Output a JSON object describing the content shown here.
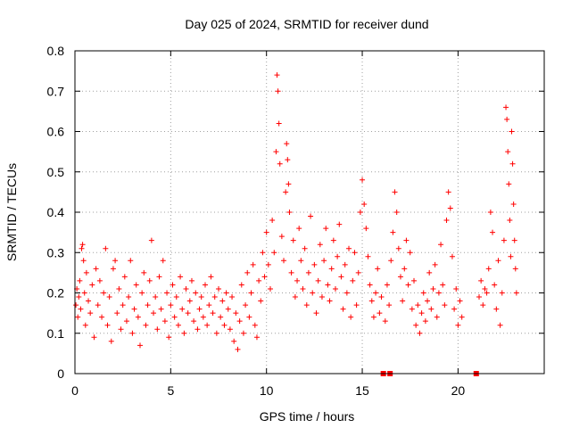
{
  "chart_data": {
    "type": "scatter",
    "title": "Day 025 of 2024, SRMTID for receiver dund",
    "xlabel": "GPS time / hours",
    "ylabel": "SRMTID / TECUs",
    "xlim": [
      0,
      24.5
    ],
    "ylim": [
      0,
      0.8
    ],
    "xticks": [
      0,
      5,
      10,
      15,
      20
    ],
    "yticks": [
      0,
      0.1,
      0.2,
      0.3,
      0.4,
      0.5,
      0.6,
      0.7,
      0.8
    ],
    "grid": true,
    "marker": "+",
    "color": "#ff0000",
    "zero_markers_x": [
      16.1,
      16.45,
      20.95
    ],
    "series": [
      {
        "name": "SRMTID",
        "points": [
          [
            0.05,
            0.17
          ],
          [
            0.1,
            0.21
          ],
          [
            0.15,
            0.14
          ],
          [
            0.2,
            0.19
          ],
          [
            0.25,
            0.23
          ],
          [
            0.3,
            0.16
          ],
          [
            0.35,
            0.31
          ],
          [
            0.4,
            0.32
          ],
          [
            0.45,
            0.28
          ],
          [
            0.5,
            0.2
          ],
          [
            0.55,
            0.12
          ],
          [
            0.6,
            0.25
          ],
          [
            0.7,
            0.18
          ],
          [
            0.8,
            0.15
          ],
          [
            0.9,
            0.22
          ],
          [
            1.0,
            0.09
          ],
          [
            1.1,
            0.26
          ],
          [
            1.2,
            0.17
          ],
          [
            1.3,
            0.23
          ],
          [
            1.4,
            0.14
          ],
          [
            1.5,
            0.2
          ],
          [
            1.6,
            0.31
          ],
          [
            1.7,
            0.12
          ],
          [
            1.8,
            0.19
          ],
          [
            1.9,
            0.08
          ],
          [
            2.0,
            0.26
          ],
          [
            2.1,
            0.28
          ],
          [
            2.2,
            0.15
          ],
          [
            2.3,
            0.21
          ],
          [
            2.4,
            0.11
          ],
          [
            2.5,
            0.17
          ],
          [
            2.6,
            0.24
          ],
          [
            2.7,
            0.13
          ],
          [
            2.8,
            0.19
          ],
          [
            2.9,
            0.28
          ],
          [
            3.0,
            0.1
          ],
          [
            3.1,
            0.16
          ],
          [
            3.2,
            0.22
          ],
          [
            3.3,
            0.14
          ],
          [
            3.4,
            0.07
          ],
          [
            3.5,
            0.2
          ],
          [
            3.6,
            0.25
          ],
          [
            3.7,
            0.12
          ],
          [
            3.8,
            0.17
          ],
          [
            3.9,
            0.23
          ],
          [
            4.0,
            0.33
          ],
          [
            4.1,
            0.15
          ],
          [
            4.2,
            0.19
          ],
          [
            4.3,
            0.11
          ],
          [
            4.4,
            0.24
          ],
          [
            4.5,
            0.16
          ],
          [
            4.6,
            0.28
          ],
          [
            4.7,
            0.13
          ],
          [
            4.8,
            0.2
          ],
          [
            4.9,
            0.09
          ],
          [
            5.0,
            0.17
          ],
          [
            5.1,
            0.22
          ],
          [
            5.2,
            0.14
          ],
          [
            5.3,
            0.19
          ],
          [
            5.4,
            0.12
          ],
          [
            5.5,
            0.24
          ],
          [
            5.6,
            0.16
          ],
          [
            5.7,
            0.1
          ],
          [
            5.8,
            0.21
          ],
          [
            5.9,
            0.15
          ],
          [
            6.0,
            0.18
          ],
          [
            6.1,
            0.23
          ],
          [
            6.2,
            0.13
          ],
          [
            6.3,
            0.2
          ],
          [
            6.4,
            0.11
          ],
          [
            6.5,
            0.16
          ],
          [
            6.6,
            0.19
          ],
          [
            6.7,
            0.14
          ],
          [
            6.8,
            0.22
          ],
          [
            6.9,
            0.12
          ],
          [
            7.0,
            0.17
          ],
          [
            7.1,
            0.24
          ],
          [
            7.2,
            0.15
          ],
          [
            7.3,
            0.19
          ],
          [
            7.4,
            0.1
          ],
          [
            7.5,
            0.21
          ],
          [
            7.6,
            0.14
          ],
          [
            7.7,
            0.18
          ],
          [
            7.8,
            0.12
          ],
          [
            7.9,
            0.2
          ],
          [
            8.0,
            0.16
          ],
          [
            8.1,
            0.11
          ],
          [
            8.2,
            0.19
          ],
          [
            8.3,
            0.08
          ],
          [
            8.4,
            0.15
          ],
          [
            8.5,
            0.06
          ],
          [
            8.6,
            0.13
          ],
          [
            8.7,
            0.22
          ],
          [
            8.8,
            0.1
          ],
          [
            8.9,
            0.17
          ],
          [
            9.0,
            0.25
          ],
          [
            9.1,
            0.14
          ],
          [
            9.2,
            0.2
          ],
          [
            9.3,
            0.27
          ],
          [
            9.4,
            0.12
          ],
          [
            9.5,
            0.09
          ],
          [
            9.6,
            0.23
          ],
          [
            9.7,
            0.18
          ],
          [
            9.8,
            0.3
          ],
          [
            9.9,
            0.24
          ],
          [
            10.0,
            0.35
          ],
          [
            10.1,
            0.27
          ],
          [
            10.2,
            0.21
          ],
          [
            10.3,
            0.38
          ],
          [
            10.4,
            0.3
          ],
          [
            10.5,
            0.55
          ],
          [
            10.55,
            0.74
          ],
          [
            10.6,
            0.7
          ],
          [
            10.65,
            0.62
          ],
          [
            10.7,
            0.52
          ],
          [
            10.8,
            0.34
          ],
          [
            10.9,
            0.28
          ],
          [
            11.0,
            0.45
          ],
          [
            11.05,
            0.57
          ],
          [
            11.1,
            0.53
          ],
          [
            11.15,
            0.47
          ],
          [
            11.2,
            0.4
          ],
          [
            11.3,
            0.25
          ],
          [
            11.4,
            0.33
          ],
          [
            11.5,
            0.19
          ],
          [
            11.6,
            0.23
          ],
          [
            11.7,
            0.36
          ],
          [
            11.8,
            0.28
          ],
          [
            11.9,
            0.21
          ],
          [
            12.0,
            0.31
          ],
          [
            12.1,
            0.17
          ],
          [
            12.2,
            0.25
          ],
          [
            12.3,
            0.39
          ],
          [
            12.4,
            0.2
          ],
          [
            12.5,
            0.27
          ],
          [
            12.6,
            0.15
          ],
          [
            12.7,
            0.23
          ],
          [
            12.8,
            0.32
          ],
          [
            12.9,
            0.19
          ],
          [
            13.0,
            0.28
          ],
          [
            13.1,
            0.36
          ],
          [
            13.2,
            0.22
          ],
          [
            13.3,
            0.18
          ],
          [
            13.4,
            0.26
          ],
          [
            13.5,
            0.33
          ],
          [
            13.6,
            0.21
          ],
          [
            13.7,
            0.29
          ],
          [
            13.8,
            0.37
          ],
          [
            13.9,
            0.24
          ],
          [
            14.0,
            0.16
          ],
          [
            14.1,
            0.27
          ],
          [
            14.2,
            0.2
          ],
          [
            14.3,
            0.31
          ],
          [
            14.4,
            0.14
          ],
          [
            14.5,
            0.23
          ],
          [
            14.6,
            0.3
          ],
          [
            14.7,
            0.17
          ],
          [
            14.8,
            0.25
          ],
          [
            14.9,
            0.4
          ],
          [
            15.0,
            0.48
          ],
          [
            15.1,
            0.42
          ],
          [
            15.2,
            0.36
          ],
          [
            15.3,
            0.29
          ],
          [
            15.4,
            0.22
          ],
          [
            15.5,
            0.18
          ],
          [
            15.6,
            0.14
          ],
          [
            15.7,
            0.2
          ],
          [
            15.8,
            0.26
          ],
          [
            15.9,
            0.15
          ],
          [
            16.0,
            0.19
          ],
          [
            16.2,
            0.13
          ],
          [
            16.3,
            0.22
          ],
          [
            16.4,
            0.17
          ],
          [
            16.5,
            0.28
          ],
          [
            16.6,
            0.35
          ],
          [
            16.7,
            0.45
          ],
          [
            16.8,
            0.4
          ],
          [
            16.9,
            0.31
          ],
          [
            17.0,
            0.24
          ],
          [
            17.1,
            0.18
          ],
          [
            17.2,
            0.26
          ],
          [
            17.3,
            0.33
          ],
          [
            17.4,
            0.22
          ],
          [
            17.5,
            0.3
          ],
          [
            17.6,
            0.16
          ],
          [
            17.7,
            0.23
          ],
          [
            17.8,
            0.12
          ],
          [
            17.9,
            0.17
          ],
          [
            18.0,
            0.1
          ],
          [
            18.1,
            0.15
          ],
          [
            18.2,
            0.2
          ],
          [
            18.3,
            0.13
          ],
          [
            18.4,
            0.18
          ],
          [
            18.5,
            0.25
          ],
          [
            18.6,
            0.16
          ],
          [
            18.7,
            0.21
          ],
          [
            18.8,
            0.27
          ],
          [
            18.9,
            0.14
          ],
          [
            19.0,
            0.2
          ],
          [
            19.1,
            0.32
          ],
          [
            19.2,
            0.22
          ],
          [
            19.3,
            0.17
          ],
          [
            19.4,
            0.38
          ],
          [
            19.5,
            0.45
          ],
          [
            19.6,
            0.41
          ],
          [
            19.7,
            0.29
          ],
          [
            19.8,
            0.16
          ],
          [
            19.9,
            0.21
          ],
          [
            20.0,
            0.12
          ],
          [
            20.1,
            0.18
          ],
          [
            20.2,
            0.14
          ],
          [
            21.1,
            0.19
          ],
          [
            21.2,
            0.23
          ],
          [
            21.3,
            0.17
          ],
          [
            21.4,
            0.21
          ],
          [
            21.5,
            0.2
          ],
          [
            21.6,
            0.26
          ],
          [
            21.7,
            0.4
          ],
          [
            21.8,
            0.35
          ],
          [
            21.9,
            0.22
          ],
          [
            22.0,
            0.16
          ],
          [
            22.1,
            0.28
          ],
          [
            22.2,
            0.12
          ],
          [
            22.3,
            0.2
          ],
          [
            22.4,
            0.33
          ],
          [
            22.5,
            0.66
          ],
          [
            22.55,
            0.63
          ],
          [
            22.6,
            0.55
          ],
          [
            22.65,
            0.47
          ],
          [
            22.7,
            0.38
          ],
          [
            22.75,
            0.29
          ],
          [
            22.8,
            0.6
          ],
          [
            22.85,
            0.52
          ],
          [
            22.9,
            0.42
          ],
          [
            22.95,
            0.33
          ],
          [
            23.0,
            0.26
          ],
          [
            23.05,
            0.2
          ]
        ]
      }
    ]
  }
}
